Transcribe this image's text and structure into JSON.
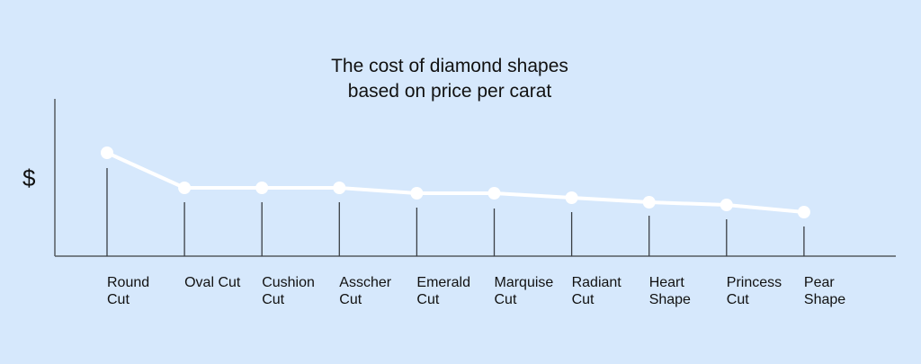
{
  "chart_data": {
    "type": "line",
    "title": "The cost of diamond shapes based on price per carat",
    "title_lines": [
      "The cost of diamond shapes",
      "based on price per carat"
    ],
    "xlabel": "",
    "ylabel": "$",
    "categories": [
      "Round Cut",
      "Oval Cut",
      "Cushion Cut",
      "Asscher Cut",
      "Emerald Cut",
      "Marquise Cut",
      "Radiant Cut",
      "Heart Shape",
      "Princess Cut",
      "Pear Shape"
    ],
    "category_lines": [
      [
        "Round",
        "Cut"
      ],
      [
        "Oval Cut"
      ],
      [
        "Cushion",
        "Cut"
      ],
      [
        "Asscher",
        "Cut"
      ],
      [
        "Emerald",
        "Cut"
      ],
      [
        "Marquise",
        "Cut"
      ],
      [
        "Radiant",
        "Cut"
      ],
      [
        "Heart",
        "Shape"
      ],
      [
        "Princess",
        "Cut"
      ],
      [
        "Pear",
        "Shape"
      ]
    ],
    "values": [
      115,
      76,
      76,
      76,
      70,
      70,
      65,
      60,
      57,
      49
    ],
    "value_note": "relative price level (no numeric scale shown)",
    "ylim": [
      0,
      175
    ],
    "grid": false,
    "legend": null,
    "colors": {
      "background": "#d6e8fc",
      "line": "#ffffff",
      "axis": "#555a60",
      "text": "#111111"
    }
  }
}
